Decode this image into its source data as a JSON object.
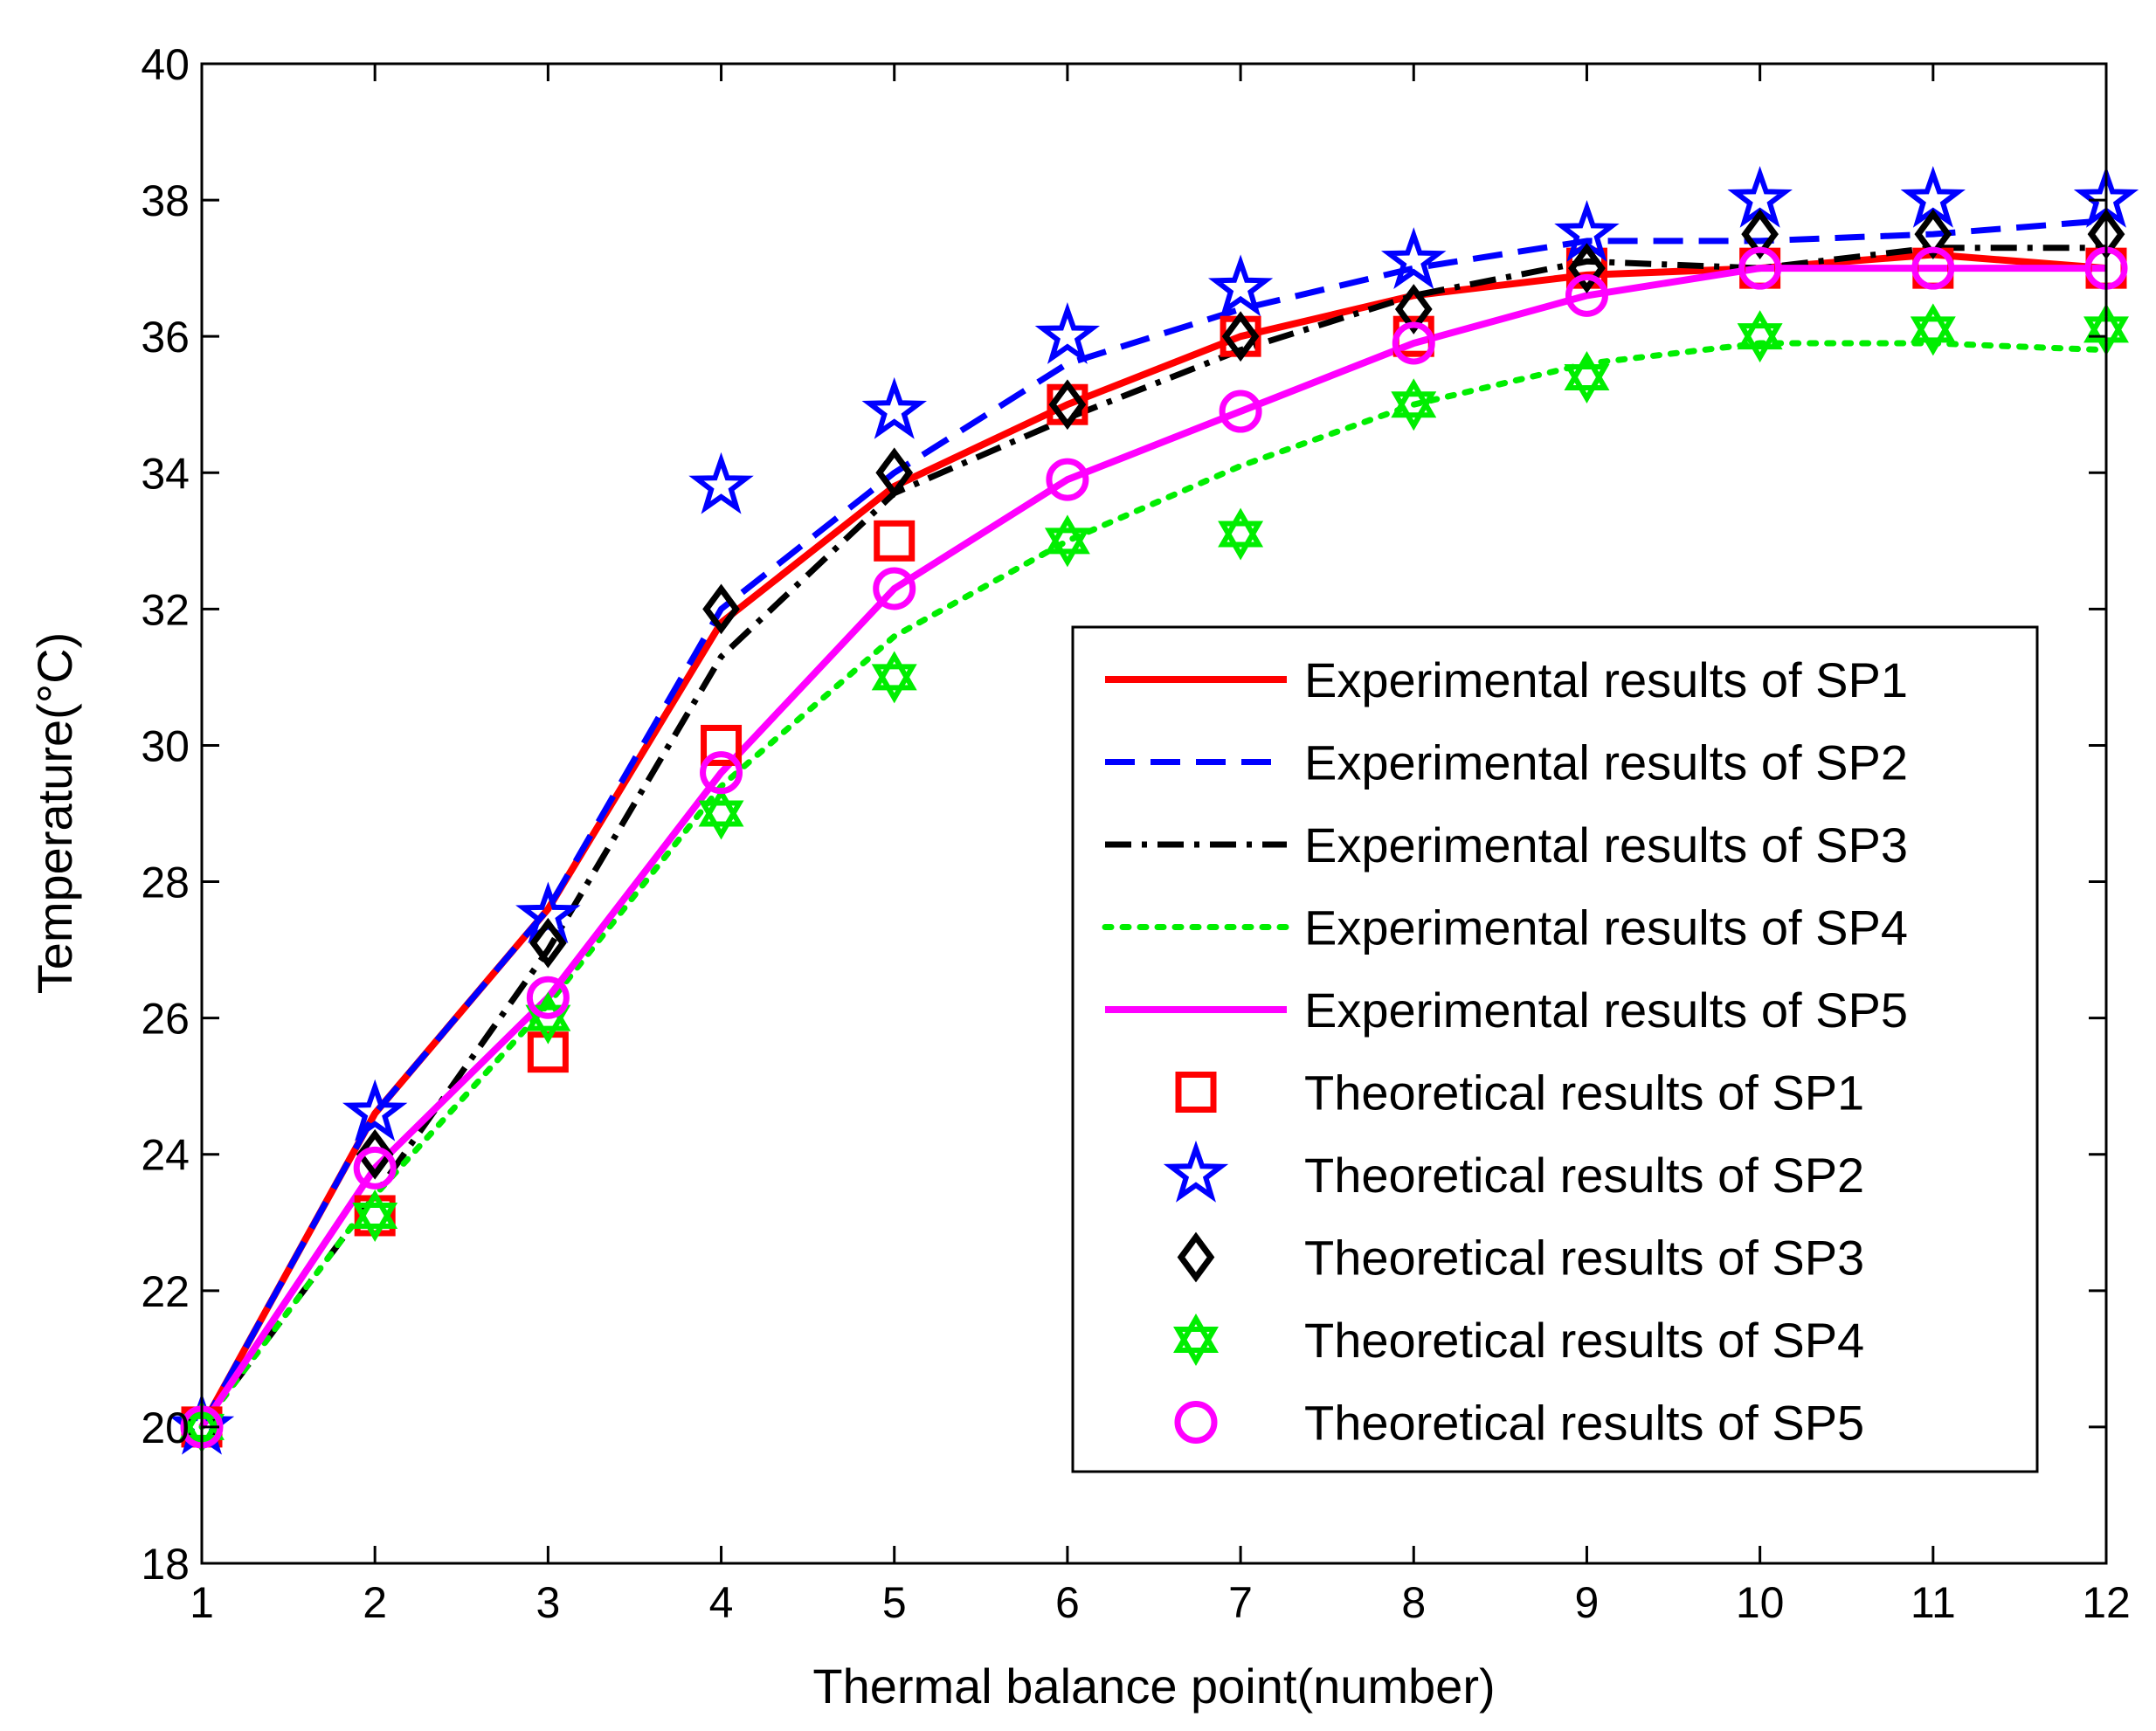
{
  "chart_data": {
    "type": "line",
    "title": "",
    "xlabel": "Thermal balance point(number)",
    "ylabel": "Temperature(°C)",
    "xlim": [
      1,
      12
    ],
    "ylim": [
      18,
      40
    ],
    "xticks": [
      1,
      2,
      3,
      4,
      5,
      6,
      7,
      8,
      9,
      10,
      11,
      12
    ],
    "yticks": [
      18,
      20,
      22,
      24,
      26,
      28,
      30,
      32,
      34,
      36,
      38,
      40
    ],
    "grid": false,
    "legend_position": "lower-right",
    "x": [
      1,
      2,
      3,
      4,
      5,
      6,
      7,
      8,
      9,
      10,
      11,
      12
    ],
    "series": [
      {
        "name": "Experimental results of SP1",
        "kind": "line",
        "style": "solid",
        "color": "#ff0000",
        "values": [
          20.0,
          24.6,
          27.6,
          31.8,
          33.8,
          35.0,
          36.0,
          36.6,
          36.9,
          37.0,
          37.2,
          37.0
        ]
      },
      {
        "name": "Experimental results of SP2",
        "kind": "line",
        "style": "dashed",
        "color": "#0000ff",
        "values": [
          20.0,
          24.6,
          27.6,
          32.0,
          34.0,
          35.6,
          36.4,
          37.0,
          37.4,
          37.4,
          37.5,
          37.7
        ]
      },
      {
        "name": "Experimental results of SP3",
        "kind": "line",
        "style": "dashdot",
        "color": "#000000",
        "values": [
          20.0,
          23.4,
          27.0,
          31.3,
          33.7,
          34.8,
          35.8,
          36.6,
          37.1,
          37.0,
          37.3,
          37.3
        ]
      },
      {
        "name": "Experimental results of SP4",
        "kind": "line",
        "style": "dotted",
        "color": "#00ee00",
        "values": [
          20.0,
          23.4,
          26.2,
          29.4,
          31.6,
          33.0,
          34.1,
          35.0,
          35.6,
          35.9,
          35.9,
          35.8
        ]
      },
      {
        "name": "Experimental results of SP5",
        "kind": "line",
        "style": "solid",
        "color": "#ff00ff",
        "values": [
          20.0,
          23.8,
          26.3,
          29.6,
          32.3,
          33.9,
          34.9,
          35.9,
          36.6,
          37.0,
          37.0,
          37.0
        ]
      },
      {
        "name": "Theoretical results of SP1",
        "kind": "marker",
        "marker": "square",
        "color": "#ff0000",
        "values": [
          20.0,
          23.1,
          25.5,
          30.0,
          33.0,
          35.0,
          36.0,
          36.0,
          37.0,
          37.0,
          37.0,
          37.0
        ]
      },
      {
        "name": "Theoretical results of SP2",
        "kind": "marker",
        "marker": "star",
        "color": "#0000ff",
        "values": [
          20.0,
          24.6,
          27.5,
          33.8,
          34.9,
          36.0,
          36.7,
          37.1,
          37.5,
          38.0,
          38.0,
          38.0
        ]
      },
      {
        "name": "Theoretical results of SP3",
        "kind": "marker",
        "marker": "diamond",
        "color": "#000000",
        "values": [
          20.0,
          24.0,
          27.1,
          32.0,
          34.0,
          35.0,
          36.0,
          36.4,
          37.0,
          37.5,
          37.5,
          37.5
        ]
      },
      {
        "name": "Theoretical results of SP4",
        "kind": "marker",
        "marker": "hexagram",
        "color": "#00ee00",
        "values": [
          20.0,
          23.1,
          26.0,
          29.0,
          31.0,
          33.0,
          33.1,
          35.0,
          35.4,
          36.0,
          36.1,
          36.1
        ]
      },
      {
        "name": "Theoretical results of SP5",
        "kind": "marker",
        "marker": "circle",
        "color": "#ff00ff",
        "values": [
          20.0,
          23.8,
          26.3,
          29.6,
          32.3,
          33.9,
          34.9,
          35.9,
          36.6,
          37.0,
          37.0,
          37.0
        ]
      }
    ]
  }
}
